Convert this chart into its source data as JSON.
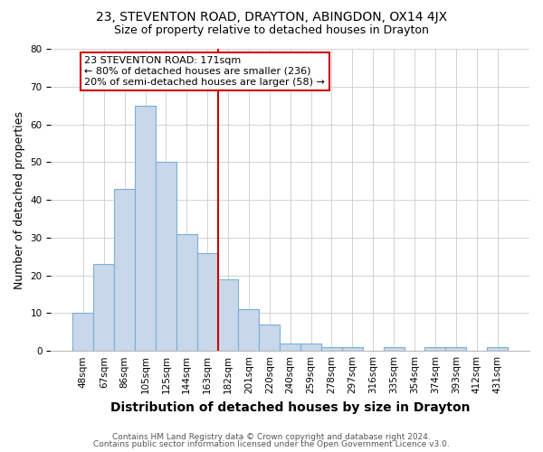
{
  "title": "23, STEVENTON ROAD, DRAYTON, ABINGDON, OX14 4JX",
  "subtitle": "Size of property relative to detached houses in Drayton",
  "xlabel": "Distribution of detached houses by size in Drayton",
  "ylabel": "Number of detached properties",
  "footnote1": "Contains HM Land Registry data © Crown copyright and database right 2024.",
  "footnote2": "Contains public sector information licensed under the Open Government Licence v3.0.",
  "bin_labels": [
    "48sqm",
    "67sqm",
    "86sqm",
    "105sqm",
    "125sqm",
    "144sqm",
    "163sqm",
    "182sqm",
    "201sqm",
    "220sqm",
    "240sqm",
    "259sqm",
    "278sqm",
    "297sqm",
    "316sqm",
    "335sqm",
    "354sqm",
    "374sqm",
    "393sqm",
    "412sqm",
    "431sqm"
  ],
  "bar_values": [
    10,
    23,
    43,
    65,
    50,
    31,
    26,
    19,
    11,
    7,
    2,
    2,
    1,
    1,
    0,
    1,
    0,
    1,
    1,
    0,
    1
  ],
  "bar_color": "#c8d8ea",
  "bar_edge_color": "#7aaed6",
  "red_line_x": 6.5,
  "red_line_color": "#cc0000",
  "annotation_text": "23 STEVENTON ROAD: 171sqm\n← 80% of detached houses are smaller (236)\n20% of semi-detached houses are larger (58) →",
  "annotation_box_color": "#ffffff",
  "annotation_box_edge": "#cc0000",
  "ylim": [
    0,
    80
  ],
  "yticks": [
    0,
    10,
    20,
    30,
    40,
    50,
    60,
    70,
    80
  ],
  "grid_color": "#cccccc",
  "bg_color": "#ffffff",
  "plot_bg_color": "#ffffff",
  "title_fontsize": 10,
  "subtitle_fontsize": 9,
  "axis_label_fontsize": 9,
  "tick_fontsize": 7.5,
  "annotation_fontsize": 8,
  "footnote_fontsize": 6.5
}
